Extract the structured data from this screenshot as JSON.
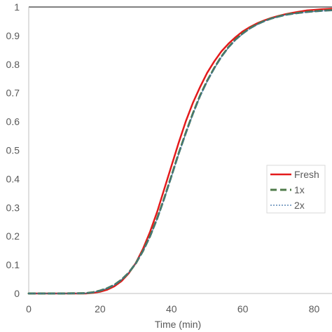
{
  "chart_data": {
    "type": "line",
    "title": "",
    "xlabel": "Time (min)",
    "ylabel": "",
    "xlim": [
      0,
      85
    ],
    "ylim": [
      0,
      1
    ],
    "x_ticks": [
      "0",
      "20",
      "40",
      "60",
      "80"
    ],
    "x_tick_values": [
      0,
      20,
      40,
      60,
      80
    ],
    "y_ticks": [
      "0",
      "0.1",
      "0.2",
      "0.3",
      "0.4",
      "0.5",
      "0.6",
      "0.7",
      "0.8",
      "0.9",
      "1"
    ],
    "y_tick_values": [
      0,
      0.1,
      0.2,
      0.3,
      0.4,
      0.5,
      0.6,
      0.7,
      0.8,
      0.9,
      1
    ],
    "grid": false,
    "legend_position": "right",
    "series": [
      {
        "name": "Fresh",
        "color": "#e31a1c",
        "style": "solid",
        "x": [
          0,
          10,
          16,
          18,
          20,
          22,
          24,
          26,
          28,
          30,
          32,
          34,
          36,
          38,
          40,
          42,
          44,
          46,
          48,
          50,
          52,
          54,
          56,
          58,
          60,
          62,
          64,
          66,
          68,
          70,
          72,
          74,
          76,
          78,
          80,
          82,
          85
        ],
        "y": [
          0,
          0,
          0,
          0.002,
          0.006,
          0.013,
          0.025,
          0.043,
          0.07,
          0.106,
          0.155,
          0.215,
          0.285,
          0.365,
          0.445,
          0.525,
          0.6,
          0.665,
          0.72,
          0.77,
          0.81,
          0.845,
          0.872,
          0.895,
          0.915,
          0.93,
          0.943,
          0.953,
          0.962,
          0.969,
          0.975,
          0.98,
          0.984,
          0.988,
          0.99,
          0.992,
          0.994
        ]
      },
      {
        "name": "1x",
        "color": "#4f7b4a",
        "style": "dashed",
        "x": [
          0,
          10,
          16,
          18,
          20,
          22,
          24,
          26,
          28,
          30,
          32,
          34,
          36,
          38,
          40,
          42,
          44,
          46,
          48,
          50,
          52,
          54,
          56,
          58,
          60,
          62,
          64,
          66,
          68,
          70,
          72,
          74,
          76,
          78,
          80,
          82,
          85
        ],
        "y": [
          0,
          0,
          0.001,
          0.004,
          0.01,
          0.018,
          0.03,
          0.048,
          0.072,
          0.105,
          0.148,
          0.2,
          0.262,
          0.333,
          0.41,
          0.488,
          0.56,
          0.628,
          0.69,
          0.742,
          0.787,
          0.827,
          0.86,
          0.887,
          0.908,
          0.926,
          0.94,
          0.951,
          0.96,
          0.967,
          0.973,
          0.977,
          0.98,
          0.983,
          0.985,
          0.987,
          0.989
        ]
      },
      {
        "name": "2x",
        "color": "#3a6fa8",
        "style": "dotted",
        "x": [
          0,
          10,
          16,
          18,
          20,
          22,
          24,
          26,
          28,
          30,
          32,
          34,
          36,
          38,
          40,
          42,
          44,
          46,
          48,
          50,
          52,
          54,
          56,
          58,
          60,
          62,
          64,
          66,
          68,
          70,
          72,
          74,
          76,
          78,
          80,
          82,
          85
        ],
        "y": [
          0,
          0,
          0.001,
          0.004,
          0.01,
          0.018,
          0.03,
          0.048,
          0.072,
          0.105,
          0.147,
          0.198,
          0.26,
          0.33,
          0.407,
          0.485,
          0.557,
          0.625,
          0.687,
          0.739,
          0.785,
          0.825,
          0.858,
          0.885,
          0.906,
          0.924,
          0.938,
          0.95,
          0.959,
          0.966,
          0.972,
          0.976,
          0.979,
          0.982,
          0.984,
          0.986,
          0.988
        ]
      }
    ]
  }
}
